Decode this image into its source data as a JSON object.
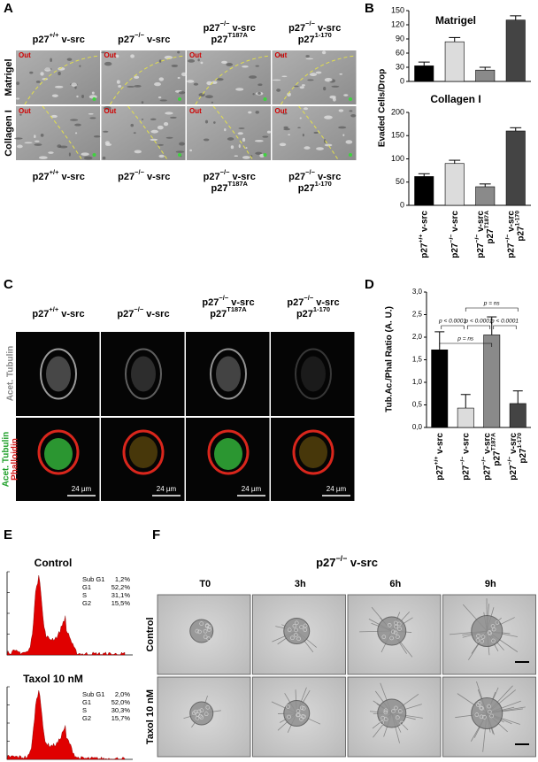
{
  "chart_data": [
    {
      "type": "bar",
      "title": "Matrigel",
      "y_label": "Evaded Cells/Drop",
      "values": [
        33,
        84,
        24,
        130
      ],
      "errors": [
        8,
        9,
        6,
        9
      ],
      "colors": [
        "#000000",
        "#dcdcdc",
        "#8a8a8a",
        "#444444"
      ],
      "ylim": [
        0,
        150
      ],
      "yticks": [
        0,
        30,
        60,
        90,
        120,
        150
      ]
    },
    {
      "type": "bar",
      "title": "Collagen I",
      "categories": [
        [
          [
            "p27",
            "+/+",
            " v-src"
          ]
        ],
        [
          [
            "p27",
            "−/−",
            " v-src"
          ]
        ],
        [
          [
            "p27",
            "−/−",
            " v-src"
          ],
          [
            "p27",
            "T187A"
          ]
        ],
        [
          [
            "p27",
            "−/−",
            " v-src"
          ],
          [
            "p27",
            "1-170"
          ]
        ]
      ],
      "values": [
        62,
        90,
        40,
        160
      ],
      "errors": [
        6,
        7,
        6,
        7
      ],
      "colors": [
        "#000000",
        "#dcdcdc",
        "#8a8a8a",
        "#444444"
      ],
      "ylim": [
        0,
        200
      ],
      "yticks": [
        0,
        50,
        100,
        150,
        200
      ]
    },
    {
      "type": "bar",
      "y_label": "Tub.Ac./Phal Ratio (A. U.)",
      "categories": [
        [
          [
            "p27",
            "+/+",
            " v-src"
          ]
        ],
        [
          [
            "p27",
            "−/−",
            " v-src"
          ]
        ],
        [
          [
            "p27",
            "−/−",
            " v-src"
          ],
          [
            "p27",
            "T187A"
          ]
        ],
        [
          [
            "p27",
            "−/−",
            " v-src"
          ],
          [
            "p27",
            "1-170"
          ]
        ]
      ],
      "values": [
        1.72,
        0.43,
        2.05,
        0.53
      ],
      "errors": [
        0.4,
        0.3,
        0.4,
        0.28
      ],
      "colors": [
        "#000000",
        "#dcdcdc",
        "#8a8a8a",
        "#444444"
      ],
      "ylim": [
        0,
        3
      ],
      "yticks": [
        {
          "value": 0,
          "label": "0,0"
        },
        {
          "value": 0.5,
          "label": "0,5"
        },
        {
          "value": 1,
          "label": "1,0"
        },
        {
          "value": 1.5,
          "label": "1,5"
        },
        {
          "value": 2,
          "label": "2,0"
        },
        {
          "value": 2.5,
          "label": "2,5"
        },
        {
          "value": 3,
          "label": "3,0"
        }
      ],
      "annotations": [
        "p = ns",
        "p < 0.0001",
        "p < 0.0001",
        "p < 0.0001",
        "p = ns"
      ]
    }
  ],
  "panel_letters": {
    "a": "A",
    "b": "B",
    "c": "C",
    "d": "D",
    "e": "E",
    "f": "F"
  },
  "panel_a": {
    "column_labels": [
      [
        [
          "p27",
          "+/+",
          " v-src"
        ]
      ],
      [
        [
          "p27",
          "−/−",
          " v-src"
        ]
      ],
      [
        [
          "p27",
          "−/−",
          " v-src"
        ],
        [
          "p27",
          "T187A"
        ]
      ],
      [
        [
          "p27",
          "−/−",
          " v-src"
        ],
        [
          "p27",
          "1-170"
        ]
      ]
    ],
    "row_labels": [
      "Matrigel",
      "Collagen I"
    ],
    "bottom_labels": [
      [
        [
          "p27",
          "+/+",
          " v-src"
        ]
      ],
      [
        [
          "p27",
          "−/−",
          " v-src"
        ]
      ],
      [
        [
          "p27",
          "−/−",
          " v-src"
        ],
        [
          "p27",
          "T187A"
        ]
      ],
      [
        [
          "p27",
          "−/−",
          " v-src"
        ],
        [
          "p27",
          "1-170"
        ]
      ]
    ],
    "inset_label": "Out"
  },
  "panel_c": {
    "column_labels": [
      [
        [
          "p27",
          "+/+",
          " v-src"
        ]
      ],
      [
        [
          "p27",
          "−/−",
          " v-src"
        ]
      ],
      [
        [
          "p27",
          "−/−",
          " v-src"
        ],
        [
          "p27",
          "T187A"
        ]
      ],
      [
        [
          "p27",
          "−/−",
          " v-src"
        ],
        [
          "p27",
          "1-170"
        ]
      ]
    ],
    "row1_label": "Acet. Tubulin",
    "row2_labels": [
      "Acet. Tubulin",
      "Phalloidin"
    ],
    "scale_label": "24 µm"
  },
  "panel_e": {
    "histograms": [
      {
        "title": "Control",
        "stats": [
          [
            "Sub G1",
            "1,2%"
          ],
          [
            "G1",
            "52,2%"
          ],
          [
            "S",
            "31,1%"
          ],
          [
            "G2",
            "15,5%"
          ]
        ]
      },
      {
        "title": "Taxol 10 nM",
        "stats": [
          [
            "Sub G1",
            "2,0%"
          ],
          [
            "G1",
            "52,0%"
          ],
          [
            "S",
            "30,3%"
          ],
          [
            "G2",
            "15,7%"
          ]
        ]
      }
    ]
  },
  "panel_f": {
    "title": [
      [
        "p27",
        "−/−",
        " v-src"
      ]
    ],
    "column_labels": [
      "T0",
      "3h",
      "6h",
      "9h"
    ],
    "row_labels": [
      "Control",
      "Taxol 10 nM"
    ]
  }
}
